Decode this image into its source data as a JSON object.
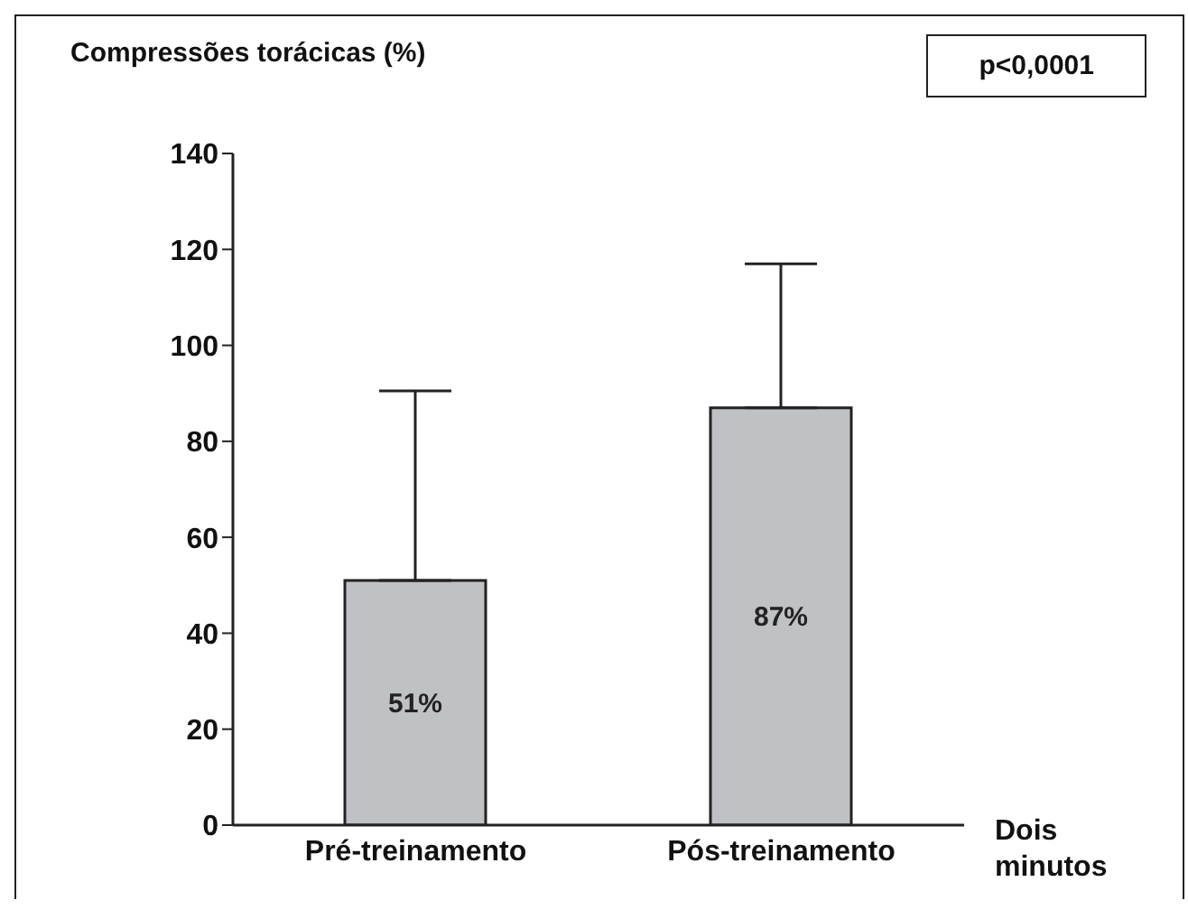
{
  "chart_data": {
    "type": "bar",
    "ylabel": "Compressões torácicas (%)",
    "xlabel": "Dois minutos",
    "annotations": [
      "p<0,0001"
    ],
    "categories": [
      "Pré-treinamento",
      "Pós-treinamento"
    ],
    "values": [
      51,
      87
    ],
    "value_labels": [
      "51%",
      "87%"
    ],
    "errors": [
      [
        51,
        90.5
      ],
      [
        87,
        117
      ]
    ],
    "color": "#c0c1c4",
    "ylim": [
      0,
      140
    ],
    "yticks": [
      0,
      20,
      40,
      60,
      80,
      100,
      120,
      140
    ],
    "grid": false,
    "legend": false
  }
}
